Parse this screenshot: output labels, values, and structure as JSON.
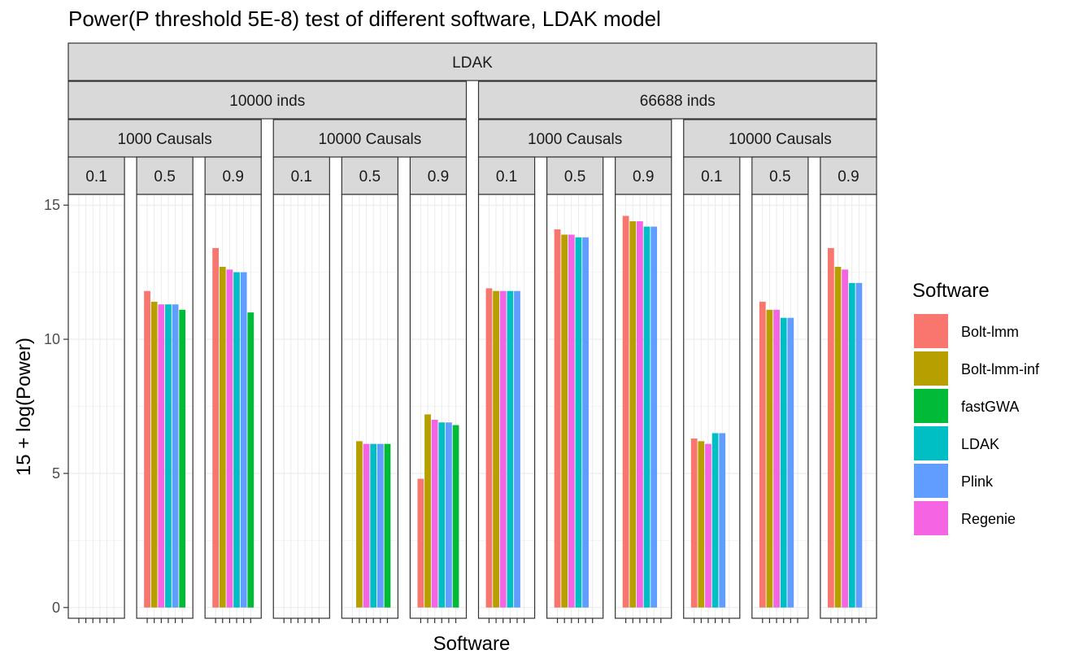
{
  "chart_data": {
    "type": "bar",
    "title": "Power(P threshold 5E-8) test of different software, LDAK model",
    "xlabel": "Software",
    "ylabel": "15 + log(Power)",
    "ylim": [
      -0.4,
      15.4
    ],
    "yticks": [
      0,
      5,
      10,
      15
    ],
    "grid": true,
    "legend": {
      "title": "Software",
      "position": "right"
    },
    "software": [
      "Bolt-lmm",
      "Bolt-lmm-inf",
      "fastGWA",
      "LDAK",
      "Plink",
      "Regenie"
    ],
    "colors": {
      "Bolt-lmm": "#F8766D",
      "Bolt-lmm-inf": "#B79F00",
      "fastGWA": "#00BA38",
      "LDAK": "#00BFC4",
      "Plink": "#619CFF",
      "Regenie": "#F564E3"
    },
    "bar_order": [
      "Bolt-lmm",
      "Bolt-lmm-inf",
      "Regenie",
      "LDAK",
      "Plink",
      "fastGWA"
    ],
    "facet_top": "LDAK",
    "facet_inds": [
      {
        "label": "10000 inds",
        "panels": [
          0,
          5
        ]
      },
      {
        "label": "66688 inds",
        "panels": [
          6,
          11
        ]
      }
    ],
    "facet_causals": [
      {
        "label": "1000 Causals",
        "panels": [
          0,
          2
        ]
      },
      {
        "label": "10000 Causals",
        "panels": [
          3,
          5
        ]
      },
      {
        "label": "1000 Causals",
        "panels": [
          6,
          8
        ]
      },
      {
        "label": "10000 Causals",
        "panels": [
          9,
          11
        ]
      }
    ],
    "panels": [
      {
        "label": "0.1",
        "values": {
          "Bolt-lmm": null,
          "Bolt-lmm-inf": null,
          "Regenie": null,
          "LDAK": null,
          "Plink": null,
          "fastGWA": null
        }
      },
      {
        "label": "0.5",
        "values": {
          "Bolt-lmm": 11.8,
          "Bolt-lmm-inf": 11.4,
          "Regenie": 11.3,
          "LDAK": 11.3,
          "Plink": 11.3,
          "fastGWA": 11.1
        }
      },
      {
        "label": "0.9",
        "values": {
          "Bolt-lmm": 13.4,
          "Bolt-lmm-inf": 12.7,
          "Regenie": 12.6,
          "LDAK": 12.5,
          "Plink": 12.5,
          "fastGWA": 11.0
        }
      },
      {
        "label": "0.1",
        "values": {
          "Bolt-lmm": null,
          "Bolt-lmm-inf": null,
          "Regenie": null,
          "LDAK": null,
          "Plink": null,
          "fastGWA": null
        }
      },
      {
        "label": "0.5",
        "values": {
          "Bolt-lmm": null,
          "Bolt-lmm-inf": 6.2,
          "Regenie": 6.1,
          "LDAK": 6.1,
          "Plink": 6.1,
          "fastGWA": 6.1
        }
      },
      {
        "label": "0.9",
        "values": {
          "Bolt-lmm": 4.8,
          "Bolt-lmm-inf": 7.2,
          "Regenie": 7.0,
          "LDAK": 6.9,
          "Plink": 6.9,
          "fastGWA": 6.8
        }
      },
      {
        "label": "0.1",
        "values": {
          "Bolt-lmm": 11.9,
          "Bolt-lmm-inf": 11.8,
          "Regenie": 11.8,
          "LDAK": 11.8,
          "Plink": 11.8,
          "fastGWA": null
        }
      },
      {
        "label": "0.5",
        "values": {
          "Bolt-lmm": 14.1,
          "Bolt-lmm-inf": 13.9,
          "Regenie": 13.9,
          "LDAK": 13.8,
          "Plink": 13.8,
          "fastGWA": null
        }
      },
      {
        "label": "0.9",
        "values": {
          "Bolt-lmm": 14.6,
          "Bolt-lmm-inf": 14.4,
          "Regenie": 14.4,
          "LDAK": 14.2,
          "Plink": 14.2,
          "fastGWA": null
        }
      },
      {
        "label": "0.1",
        "values": {
          "Bolt-lmm": 6.3,
          "Bolt-lmm-inf": 6.2,
          "Regenie": 6.1,
          "LDAK": 6.5,
          "Plink": 6.5,
          "fastGWA": null
        }
      },
      {
        "label": "0.5",
        "values": {
          "Bolt-lmm": 11.4,
          "Bolt-lmm-inf": 11.1,
          "Regenie": 11.1,
          "LDAK": 10.8,
          "Plink": 10.8,
          "fastGWA": null
        }
      },
      {
        "label": "0.9",
        "values": {
          "Bolt-lmm": 13.4,
          "Bolt-lmm-inf": 12.7,
          "Regenie": 12.6,
          "LDAK": 12.1,
          "Plink": 12.1,
          "fastGWA": null
        }
      }
    ]
  }
}
